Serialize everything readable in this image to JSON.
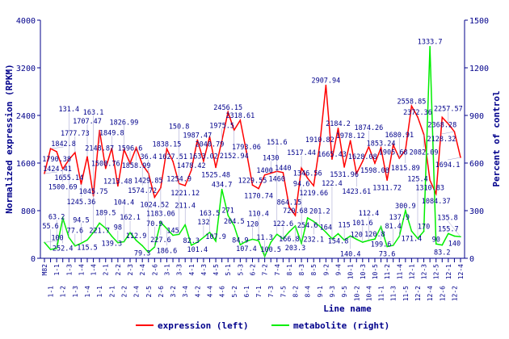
{
  "chart_data": {
    "type": "line",
    "xlabel": "Line name",
    "ylabel_left": "Normalized expression (RPKM)",
    "ylabel_right": "Percent of control",
    "ylim_left": [
      0,
      4000
    ],
    "ylim_right": [
      0,
      1500
    ],
    "yticks_left": [
      "0",
      "800",
      "1600",
      "2400",
      "3200",
      "4000"
    ],
    "yticks_right": [
      "0",
      "300",
      "600",
      "900",
      "1200",
      "1500"
    ],
    "legend": [
      {
        "name": "expression (left)",
        "color": "#ff0000"
      },
      {
        "name": "metabolite (right)",
        "color": "#00ee00"
      }
    ],
    "categories": [
      "M82",
      "1-1",
      "1-1",
      "1-2",
      "1-3",
      "1-3",
      "1-4",
      "1-4",
      "1-4",
      "1-1",
      "2-1",
      "2-1",
      "2-2",
      "2-2",
      "2-3",
      "2-4",
      "2-4",
      "2-5",
      "2-6",
      "2-6",
      "3-1",
      "3-2",
      "3-3",
      "3-4",
      "4-1",
      "4-2",
      "4-3",
      "4-4",
      "4-5",
      "4-6",
      "5-1",
      "5-2",
      "5-3",
      "6-1",
      "6-2",
      "7-1",
      "7-2",
      "7-3",
      "7-4",
      "7-5",
      "8-1",
      "8-2",
      "8-3",
      "8-4",
      "8-5",
      "9-1",
      "9-2",
      "9-3",
      "9-4",
      "9-5",
      "10-1",
      "10-2",
      "10-3",
      "10-4",
      "10-5",
      "11-1",
      "11-2",
      "11-3",
      "11-4",
      "11-5",
      "12-1",
      "12-2",
      "12-3",
      "12-4",
      "12-5",
      "12-6",
      "12-1",
      "12-2",
      "12-4"
    ],
    "series": [
      {
        "name": "expression (left)",
        "axis": "left",
        "color": "#ff0000",
        "values": [
          1424.41,
          1842.8,
          1790.38,
          1500.69,
          1655.14,
          1777.73,
          1245.36,
          1707.47,
          1045.75,
          2148.87,
          1508.76,
          1849.8,
          1213.48,
          1826.99,
          1596.6,
          1858.99,
          1574.72,
          1429.85,
          1024.52,
          1183.06,
          1838.15,
          1627.51,
          1254.9,
          1221.12,
          1478.42,
          1987.47,
          1633.02,
          2040.79,
          1525.48,
          1975.5,
          2456.15,
          2152.94,
          2318.61,
          1793.06,
          1229.55,
          1170.74,
          1400,
          1430,
          1460,
          1440,
          864.15,
          720.68,
          1517.44,
          1346.56,
          1219.66,
          1910.82,
          2907.94,
          1665.43,
          2184.2,
          1531.96,
          1978.12,
          1423.61,
          1628.08,
          1874.26,
          1598.08,
          1853.24,
          1311.72,
          1905.68,
          1680.91,
          1815.89,
          2558.85,
          2372.36,
          2082.09,
          1310.83,
          1084.37,
          2368.28,
          2257.57,
          2128.32,
          1694.1
        ]
      },
      {
        "name": "metabolite (right)",
        "axis": "right",
        "color": "#00ee00",
        "values": [
          100,
          55.6,
          63.2,
          252.4,
          131.4,
          77.6,
          94.5,
          115.5,
          163.1,
          221.7,
          189.5,
          139.3,
          98,
          104.4,
          162.1,
          112.9,
          79.3,
          36.4,
          70.9,
          227.6,
          186.6,
          145,
          150.8,
          211.4,
          82.3,
          101.4,
          132,
          163.5,
          107.9,
          434.7,
          271,
          204.5,
          84.9,
          107.4,
          120,
          110.4,
          11.3,
          100.5,
          151.6,
          122.6,
          166.8,
          203.3,
          94.6,
          254.6,
          232.1,
          201.2,
          164,
          122.4,
          154.8,
          115,
          140.4,
          120,
          101.6,
          112.4,
          120.8,
          199.6,
          73.6,
          81.4,
          137.9,
          300.9,
          171.4,
          125.4,
          170,
          1333.7,
          90,
          83.2,
          155.7,
          140,
          135.8
        ]
      }
    ]
  }
}
